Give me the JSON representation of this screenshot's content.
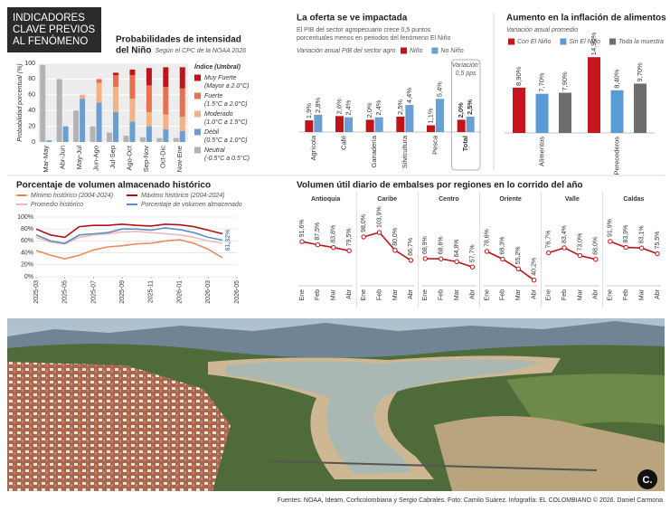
{
  "header": {
    "title_lines": [
      "INDICADORES",
      "CLAVE PREVIOS",
      "AL FENÓMENO"
    ]
  },
  "chart_data": [
    {
      "type": "stacked_bar",
      "title_lines": [
        "Probabilidades de intensidad",
        "del Niño"
      ],
      "subtitle": "Según el CPC de la NOAA 2026",
      "y_label": "Probabilidad porcentual (%)",
      "legend_title": "Índice (Umbral)",
      "categories": [
        "Mar-May",
        "Abr-Jun",
        "May-Jul",
        "Jun-Ago",
        "Jul-Sep",
        "Ago-Oct",
        "Sep-Nov",
        "Oct-Dic",
        "Nov-Ene"
      ],
      "ylim": [
        0,
        100
      ],
      "yticks": [
        0,
        20,
        40,
        60,
        80,
        100
      ],
      "grid": true,
      "series": [
        {
          "name": "Neutral",
          "threshold": "(-0.5°C a 0.5°C)",
          "color": "#b3b3b3",
          "stacked": false,
          "values": [
            98,
            80,
            40,
            20,
            12,
            8,
            6,
            5,
            5
          ]
        },
        {
          "name": "Débil",
          "threshold": "(0.5°C a 1.0°C)",
          "color": "#6a9fd4",
          "stacked": true,
          "values": [
            2,
            20,
            55,
            50,
            38,
            26,
            20,
            16,
            14
          ]
        },
        {
          "name": "Moderado",
          "threshold": "(1.0°C a 1.5°C)",
          "color": "#f4b183",
          "stacked": true,
          "values": [
            0,
            0,
            5,
            25,
            32,
            29,
            18,
            19,
            18
          ]
        },
        {
          "name": "Fuerte",
          "threshold": "(1.5°C a 2.0°C)",
          "color": "#e8704f",
          "stacked": true,
          "values": [
            0,
            0,
            0,
            5,
            15,
            30,
            34,
            35,
            36
          ]
        },
        {
          "name": "Muy Fuerte",
          "threshold": "(Mayor a 2.0°C)",
          "color": "#c0141b",
          "stacked": true,
          "values": [
            0,
            0,
            0,
            0,
            3,
            7,
            22,
            25,
            27
          ]
        }
      ]
    },
    {
      "type": "grouped_bar",
      "title": "La oferta se ve impactada",
      "subtitle_lines": [
        "El PIB del sector agropecuario crece 0,5 puntos",
        "porcentuales menos en periodos del fenómeno El Niño"
      ],
      "y_label": "Variación anual PIB del sector agro",
      "annotation_lines": [
        "Variación:",
        "0,5 pps"
      ],
      "categories": [
        "Agrícola",
        "Café",
        "Ganadería",
        "Silvicultura",
        "Pesca",
        "Total"
      ],
      "ylim": [
        0,
        10
      ],
      "series": [
        {
          "name": "Niño",
          "color": "#c0141b",
          "values": [
            1.9,
            2.6,
            2.0,
            2.5,
            1.1,
            2.0
          ],
          "value_labels": [
            "1,9%",
            "2,6%",
            "2,0%",
            "2,5%",
            "1,1%",
            "2,0%"
          ]
        },
        {
          "name": "No Niño",
          "color": "#6a9fd4",
          "values": [
            2.8,
            2.4,
            2.4,
            4.4,
            5.4,
            2.5
          ],
          "value_labels": [
            "2,8%",
            "2,4%",
            "2,4%",
            "4,4%",
            "5,4%",
            "2,5%"
          ]
        }
      ]
    },
    {
      "type": "grouped_bar",
      "title": "Aumento en la inflación de alimentos",
      "subtitle": "Variación anual promedio",
      "categories": [
        "Alimentos",
        "Perecederos"
      ],
      "ylim": [
        0,
        16
      ],
      "series": [
        {
          "name": "Con El Niño",
          "color": "#c8141c",
          "values": [
            8.9,
            14.9
          ],
          "value_labels": [
            "8,90%",
            "14,90%"
          ]
        },
        {
          "name": "Sin El Niño",
          "color": "#5b9bd5",
          "values": [
            7.7,
            8.4
          ],
          "value_labels": [
            "7,70%",
            "8,40%"
          ]
        },
        {
          "name": "Toda la muestra",
          "color": "#6d6d6d",
          "values": [
            7.9,
            9.7
          ],
          "value_labels": [
            "7,90%",
            "9,70%"
          ]
        }
      ]
    },
    {
      "type": "line",
      "title": "Porcentaje de volumen almacenado histórico",
      "x": [
        "2025-03",
        "2025-04",
        "2025-05",
        "2025-06",
        "2025-07",
        "2025-08",
        "2025-09",
        "2025-10",
        "2025-11",
        "2025-12",
        "2026-01",
        "2026-02",
        "2026-03",
        "2026-04"
      ],
      "xlim": [
        "2025-03",
        "2026-05"
      ],
      "xticks": [
        "2025-03",
        "2025-05",
        "2025-07",
        "2025-09",
        "2025-11",
        "2026-01",
        "2026-03",
        "2026-05"
      ],
      "ylim": [
        0,
        100
      ],
      "yticks": [
        {
          "value": 0,
          "label": "0%"
        },
        {
          "value": 20,
          "label": "20%"
        },
        {
          "value": 40,
          "label": "40%"
        },
        {
          "value": 60,
          "label": "60%"
        },
        {
          "value": 80,
          "label": "80%"
        },
        {
          "value": 100,
          "label": "100%"
        }
      ],
      "grid": true,
      "series": [
        {
          "name": "Mínimo histórico (2004-2024)",
          "color": "#f08a5d",
          "values": [
            44,
            36,
            30,
            36,
            45,
            50,
            52,
            55,
            56,
            60,
            62,
            56,
            46,
            32
          ]
        },
        {
          "name": "Máximo histórico (2004-2024)",
          "color": "#b3121a",
          "values": [
            80,
            70,
            66,
            84,
            86,
            86,
            88,
            86,
            85,
            88,
            87,
            84,
            78,
            72
          ]
        },
        {
          "name": "Promedio histórico",
          "color": "#f2b6b6",
          "values": [
            66,
            58,
            55,
            66,
            70,
            72,
            75,
            76,
            74,
            72,
            70,
            66,
            60,
            56
          ]
        },
        {
          "name": "Porcentaje de volumen almacenado",
          "color": "#5b8fc9",
          "values": [
            70,
            60,
            56,
            70,
            72,
            74,
            80,
            80,
            78,
            82,
            79,
            74,
            66,
            61.32
          ],
          "value_labels": [
            null,
            null,
            null,
            null,
            null,
            null,
            null,
            null,
            null,
            null,
            null,
            null,
            null,
            "61,32%"
          ]
        }
      ]
    },
    {
      "type": "small_multiples",
      "title": "Volumen útil diario de embalses por regiones en lo corrido del año",
      "categories": [
        "Ene",
        "Feb",
        "Mar",
        "Abr"
      ],
      "ylim": [
        35,
        110
      ],
      "color": "#c0141b",
      "panels": [
        {
          "name": "Antioquia",
          "values": [
            91.6,
            87.5,
            83.8,
            79.5
          ],
          "value_labels": [
            "91,6%",
            "87,5%",
            "83,8%",
            "79,5%"
          ]
        },
        {
          "name": "Caribe",
          "values": [
            98.0,
            103.9,
            80.0,
            66.7
          ],
          "value_labels": [
            "98,0%",
            "103,9%",
            "80,0%",
            "66,7%"
          ]
        },
        {
          "name": "Centro",
          "values": [
            68.9,
            68.6,
            64.8,
            57.7
          ],
          "value_labels": [
            "68,9%",
            "68,6%",
            "64,8%",
            "57,7%"
          ]
        },
        {
          "name": "Oriente",
          "values": [
            78.6,
            68.3,
            55.2,
            40.2
          ],
          "value_labels": [
            "78,6%",
            "68,3%",
            "55,2%",
            "40,2%"
          ]
        },
        {
          "name": "Valle",
          "values": [
            76.7,
            83.4,
            73.0,
            68.0
          ],
          "value_labels": [
            "76,7%",
            "83,4%",
            "73,0%",
            "68,0%"
          ]
        },
        {
          "name": "Caldas",
          "values": [
            91.9,
            83.9,
            83.1,
            75.5
          ],
          "value_labels": [
            "91,9%",
            "83,9%",
            "83,1%",
            "75,5%"
          ]
        }
      ]
    }
  ],
  "photo": {
    "logo": "C."
  },
  "footer": {
    "credits": "Fuentes: NOAA, Ideam, Corficolombiana y Sergio Cabrales. Foto: Camilo Suárez. Infografía: EL COLOMBIANO © 2026. Daniel Carmona"
  }
}
